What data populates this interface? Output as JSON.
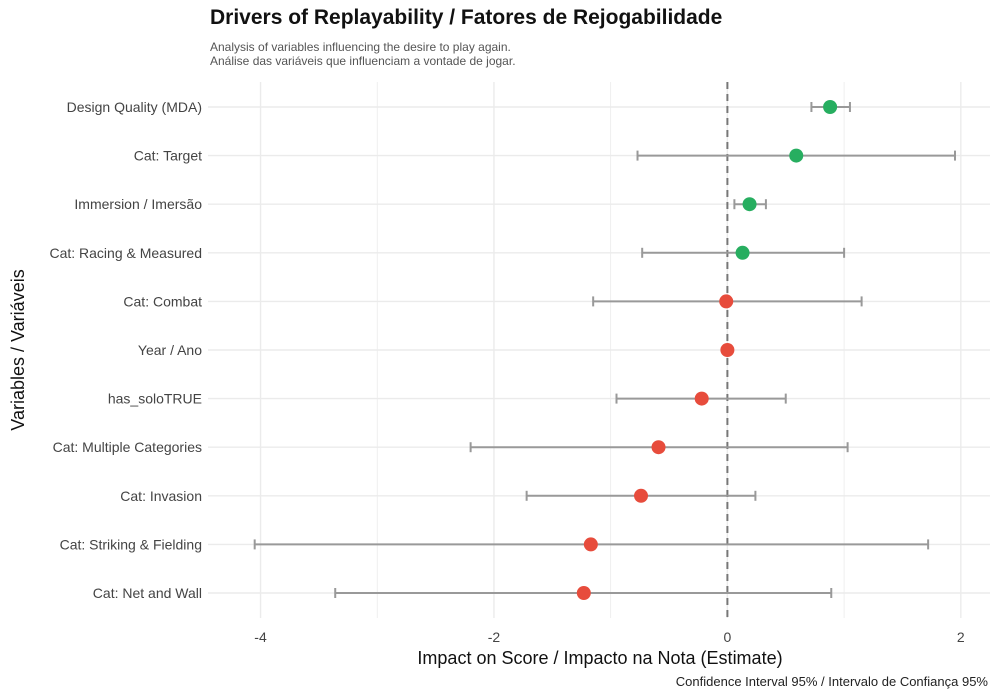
{
  "chart_data": {
    "type": "scatter",
    "title": "Drivers of Replayability / Fatores de Rejogabilidade",
    "subtitle": [
      "Analysis of variables influencing the desire to play again.",
      "Análise das variáveis que influenciam a vontade de jogar."
    ],
    "xlabel": "Impact on Score / Impacto na Nota (Estimate)",
    "ylabel": "Variables / Variáveis",
    "caption": "Confidence Interval 95% / Intervalo de Confiança 95%",
    "xlim": [
      -4.45,
      2.25
    ],
    "xticks": [
      -4,
      -2,
      0,
      2
    ],
    "xtick_labels": [
      "-4",
      "-2",
      "0",
      "2"
    ],
    "reference_line": 0,
    "grid": true,
    "colors": {
      "positive": "#27ae60",
      "negative": "#e74c3c",
      "errorbar": "#999999",
      "grid": "#ebebeb",
      "refline": "#777777"
    },
    "points": [
      {
        "label": "Design Quality (MDA)",
        "estimate": 0.88,
        "low": 0.72,
        "high": 1.05,
        "sign": "positive"
      },
      {
        "label": "Cat: Target",
        "estimate": 0.59,
        "low": -0.77,
        "high": 1.95,
        "sign": "positive"
      },
      {
        "label": "Immersion / Imersão",
        "estimate": 0.19,
        "low": 0.06,
        "high": 0.33,
        "sign": "positive"
      },
      {
        "label": "Cat: Racing & Measured",
        "estimate": 0.13,
        "low": -0.73,
        "high": 1.0,
        "sign": "positive"
      },
      {
        "label": "Cat: Combat",
        "estimate": -0.01,
        "low": -1.15,
        "high": 1.15,
        "sign": "negative"
      },
      {
        "label": "Year / Ano",
        "estimate": 0.0,
        "low": -0.02,
        "high": 0.02,
        "sign": "negative"
      },
      {
        "label": "has_soloTRUE",
        "estimate": -0.22,
        "low": -0.95,
        "high": 0.5,
        "sign": "negative"
      },
      {
        "label": "Cat: Multiple Categories",
        "estimate": -0.59,
        "low": -2.2,
        "high": 1.03,
        "sign": "negative"
      },
      {
        "label": "Cat: Invasion",
        "estimate": -0.74,
        "low": -1.72,
        "high": 0.24,
        "sign": "negative"
      },
      {
        "label": "Cat: Striking & Fielding",
        "estimate": -1.17,
        "low": -4.05,
        "high": 1.72,
        "sign": "negative"
      },
      {
        "label": "Cat: Net and Wall",
        "estimate": -1.23,
        "low": -3.36,
        "high": 0.89,
        "sign": "negative"
      }
    ]
  }
}
